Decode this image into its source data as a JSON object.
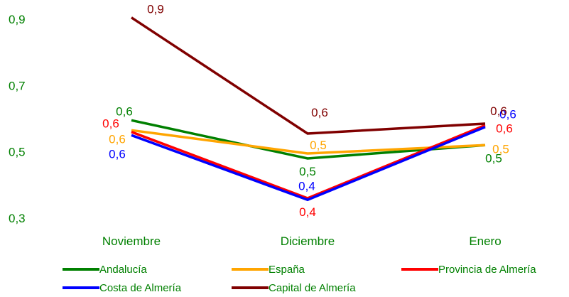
{
  "chart_data": {
    "type": "line",
    "categories": [
      "Noviembre",
      "Diciembre",
      "Enero"
    ],
    "ylim": [
      0.3,
      0.9
    ],
    "y_ticks": [
      "0,3",
      "0,5",
      "0,7",
      "0,9"
    ],
    "grid": false,
    "legend_position": "bottom",
    "series": [
      {
        "name": "Andalucía",
        "color": "#008000",
        "values": [
          0.595,
          0.48,
          0.52
        ],
        "labels": [
          "0,6",
          "0,5",
          "0,5"
        ]
      },
      {
        "name": "España",
        "color": "#FFA500",
        "values": [
          0.565,
          0.495,
          0.52
        ],
        "labels": [
          "0,6",
          "0,5",
          "0,5"
        ]
      },
      {
        "name": "Provincia de Almería",
        "color": "#FF0000",
        "values": [
          0.56,
          0.36,
          0.58
        ],
        "labels": [
          "0,6",
          "0,4",
          "0,6"
        ]
      },
      {
        "name": "Costa de Almería",
        "color": "#0000FF",
        "values": [
          0.55,
          0.355,
          0.575
        ],
        "labels": [
          "0,6",
          "0,4",
          "0,6"
        ]
      },
      {
        "name": "Capital de Almería",
        "color": "#800000",
        "values": [
          0.905,
          0.555,
          0.585
        ],
        "labels": [
          "0,9",
          "0,6",
          "0,6"
        ]
      }
    ]
  }
}
